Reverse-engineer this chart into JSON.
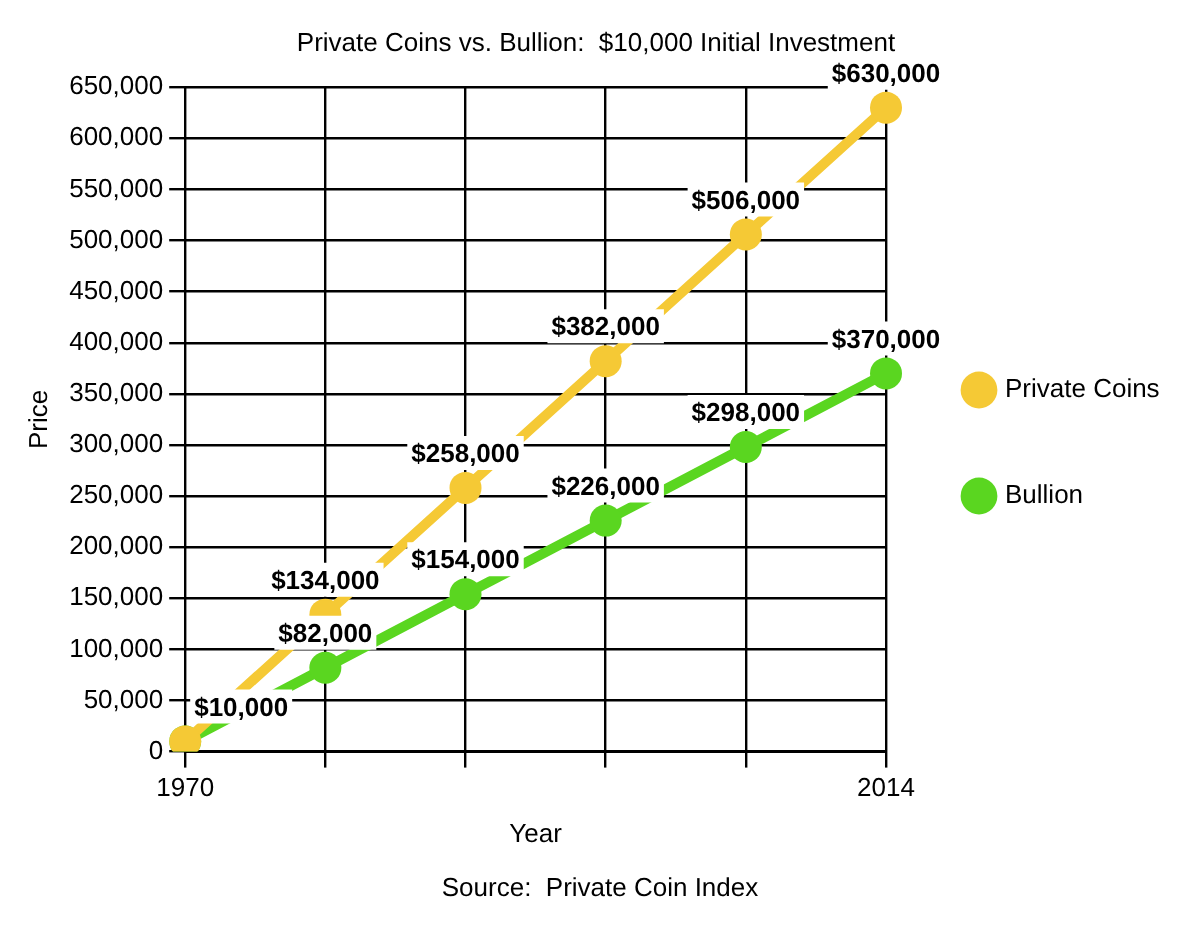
{
  "chart_data": {
    "type": "line",
    "title": "Private Coins vs. Bullion:  $10,000 Initial Investment",
    "xlabel": "Year",
    "ylabel": "Price",
    "annotations": [
      "Source:  Private Coin Index"
    ],
    "categories": [
      "1970",
      null,
      null,
      null,
      null,
      "2014"
    ],
    "series": [
      {
        "name": "Private Coins",
        "color": "#f5c935",
        "values": [
          10000,
          134000,
          258000,
          382000,
          506000,
          630000
        ],
        "value_labels": [
          "$10,000",
          "$134,000",
          "$258,000",
          "$382,000",
          "$506,000",
          "$630,000"
        ]
      },
      {
        "name": "Bullion",
        "color": "#5ad620",
        "values": [
          10000,
          82000,
          154000,
          226000,
          298000,
          370000
        ],
        "value_labels": [
          null,
          "$82,000",
          "$154,000",
          "$226,000",
          "$298,000",
          "$370,000"
        ]
      }
    ],
    "ylim": [
      0,
      650000
    ],
    "yticks": [
      0,
      {
        "value": 50000,
        "label": "50,000"
      },
      {
        "value": 100000,
        "label": "100,000"
      },
      {
        "value": 150000,
        "label": "150,000"
      },
      {
        "value": 200000,
        "label": "200,000"
      },
      {
        "value": 250000,
        "label": "250,000"
      },
      {
        "value": 300000,
        "label": "300,000"
      },
      {
        "value": 350000,
        "label": "350,000"
      },
      {
        "value": 400000,
        "label": "400,000"
      },
      {
        "value": 450000,
        "label": "450,000"
      },
      {
        "value": 500000,
        "label": "500,000"
      },
      {
        "value": 550000,
        "label": "550,000"
      },
      {
        "value": 600000,
        "label": "600,000"
      },
      {
        "value": 650000,
        "label": "650,000"
      }
    ],
    "grid": true,
    "legend": "right",
    "marker": "circle",
    "line_style": "solid"
  }
}
